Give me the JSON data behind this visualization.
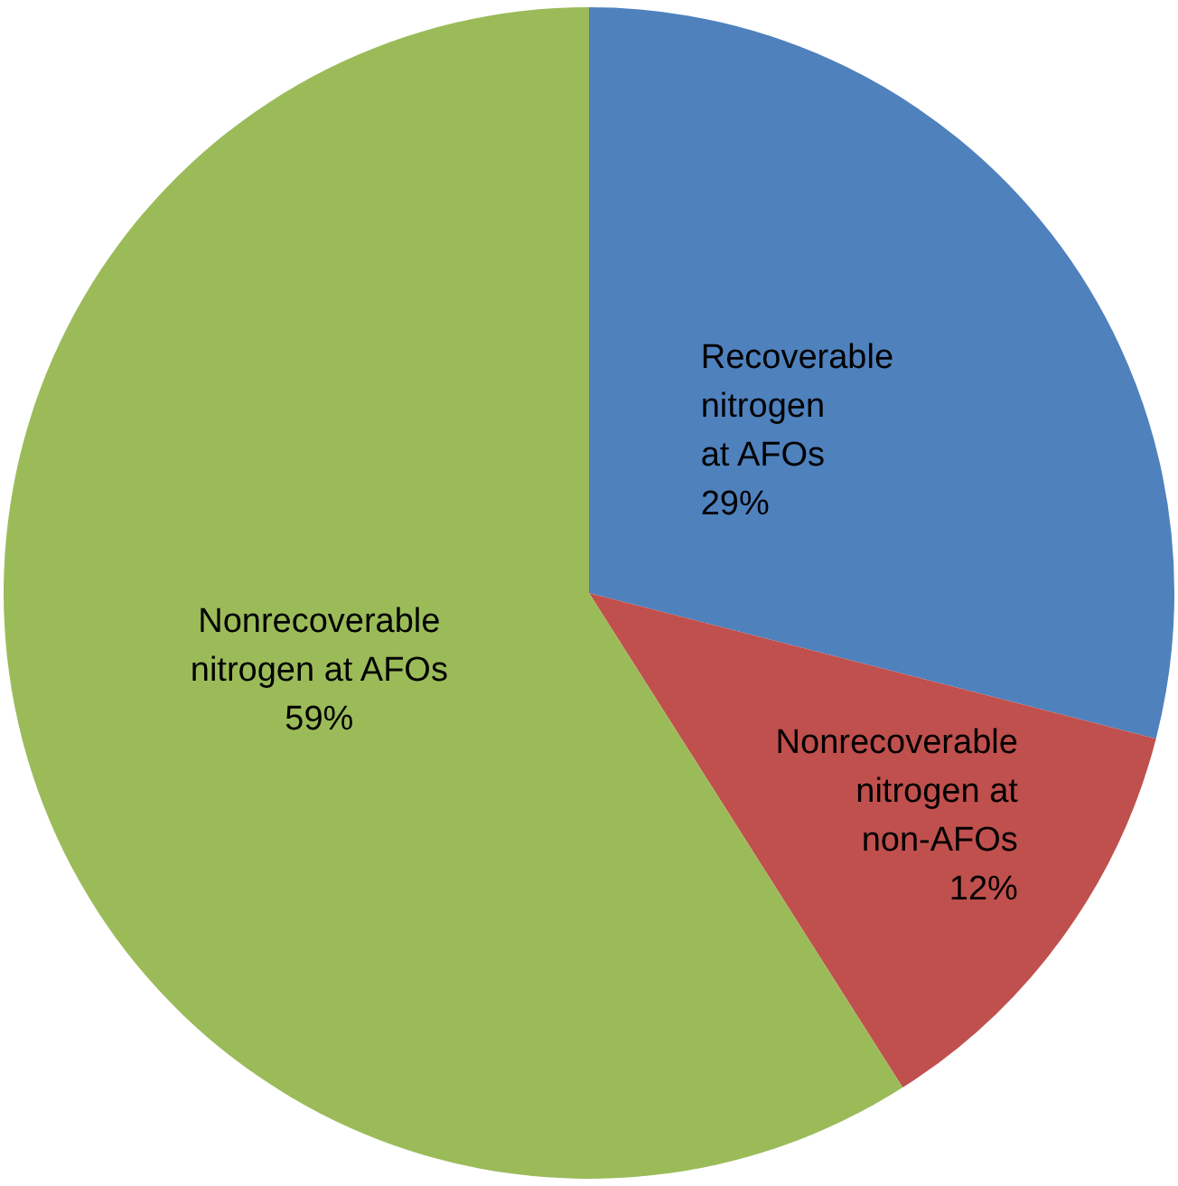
{
  "chart_data": {
    "type": "pie",
    "categories": [
      "Recoverable\nnitrogen\nat AFOs",
      "Nonrecoverable\nnitrogen at\nnon-AFOs",
      "Nonrecoverable\nnitrogen at AFOs"
    ],
    "values": [
      29,
      12,
      59
    ],
    "colors": [
      "#4f81bd",
      "#c0504d",
      "#9bbb59"
    ],
    "value_labels": [
      "29%",
      "12%",
      "59%"
    ],
    "legend": false
  }
}
